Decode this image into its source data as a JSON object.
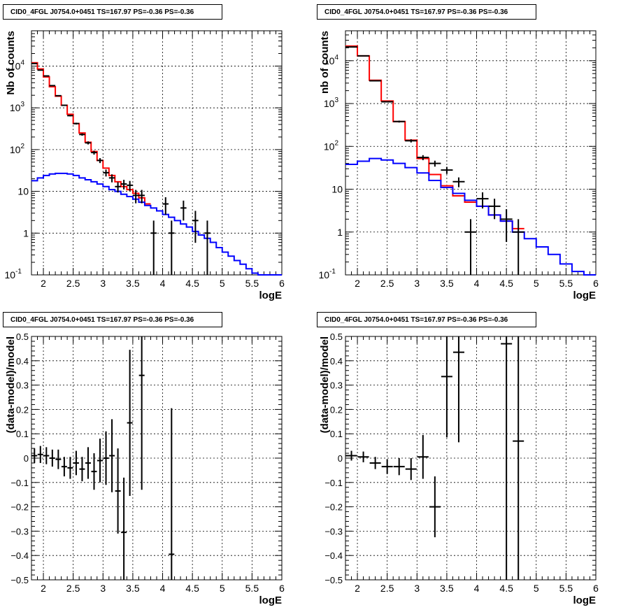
{
  "chart_data": [
    {
      "id": "top-left",
      "type": "step-histogram",
      "title": "CID0_4FGL J0754.0+0451 TS=167.97 PS=-0.36 PS=-0.36",
      "xlabel": "logE",
      "ylabel": "Nb of counts",
      "xlim": [
        1.8,
        6.0
      ],
      "ylim": [
        0.1,
        70000
      ],
      "yscale": "log",
      "grid": true,
      "x_ticks": [
        "2",
        "2.5",
        "3",
        "3.5",
        "4",
        "4.5",
        "5",
        "5.5",
        "6"
      ],
      "y_ticks": [
        "10^-1",
        "1",
        "10",
        "10^2",
        "10^3",
        "10^4"
      ],
      "series": [
        {
          "color": "#ff0000",
          "bin_width": 0.1,
          "bin_edges_start": 1.8,
          "values": [
            12000,
            8500,
            5500,
            3200,
            1900,
            1150,
            700,
            420,
            250,
            150,
            90,
            55,
            36,
            24,
            17,
            13,
            11,
            9,
            7,
            5
          ]
        },
        {
          "color": "#0000ff",
          "bin_width": 0.1,
          "bin_edges_start": 1.8,
          "values": [
            18,
            21,
            24,
            26,
            27,
            27,
            26,
            24,
            21,
            19,
            17,
            15,
            13,
            11,
            10,
            8.5,
            7.5,
            6.5,
            5.5,
            4.6,
            4.0,
            3.4,
            2.8,
            2.4,
            2.0,
            1.65,
            1.4,
            1.1,
            0.9,
            0.75,
            0.6,
            0.45,
            0.35,
            0.28,
            0.22,
            0.18,
            0.14,
            0.11,
            0.1,
            0.1,
            0.1,
            0.1
          ]
        }
      ],
      "data_points": [
        {
          "x": 1.85,
          "y": 11500
        },
        {
          "x": 1.95,
          "y": 8000
        },
        {
          "x": 2.05,
          "y": 5800
        },
        {
          "x": 2.15,
          "y": 3400
        },
        {
          "x": 2.25,
          "y": 1950
        },
        {
          "x": 2.35,
          "y": 1150
        },
        {
          "x": 2.45,
          "y": 650
        },
        {
          "x": 2.55,
          "y": 420
        },
        {
          "x": 2.65,
          "y": 230
        },
        {
          "x": 2.75,
          "y": 145
        },
        {
          "x": 2.85,
          "y": 85
        },
        {
          "x": 2.95,
          "y": 55
        },
        {
          "x": 3.05,
          "y": 28
        },
        {
          "x": 3.15,
          "y": 21
        },
        {
          "x": 3.25,
          "y": 13
        },
        {
          "x": 3.35,
          "y": 15
        },
        {
          "x": 3.45,
          "y": 14
        },
        {
          "x": 3.55,
          "y": 8
        },
        {
          "x": 3.65,
          "y": 8
        },
        {
          "x": 3.85,
          "y": 1
        },
        {
          "x": 4.05,
          "y": 5
        },
        {
          "x": 4.15,
          "y": 1
        },
        {
          "x": 4.35,
          "y": 4
        },
        {
          "x": 4.55,
          "y": 2
        },
        {
          "x": 4.75,
          "y": 1
        }
      ]
    },
    {
      "id": "top-right",
      "type": "step-histogram",
      "title": "CID0_4FGL J0754.0+0451 TS=167.97 PS=-0.36 PS=-0.36",
      "xlabel": "logE",
      "ylabel": "nb of counts",
      "xlim": [
        1.8,
        6.0
      ],
      "ylim": [
        0.1,
        50000
      ],
      "yscale": "log",
      "grid": true,
      "x_ticks": [
        "2",
        "2.5",
        "3",
        "3.5",
        "4",
        "4.5",
        "5",
        "5.5",
        "6"
      ],
      "y_ticks": [
        "10^-1",
        "1",
        "10",
        "10^2",
        "10^3",
        "10^4"
      ],
      "series": [
        {
          "color": "#ff0000",
          "bin_width": 0.2,
          "bin_edges_start": 1.8,
          "values": [
            22000,
            13000,
            3500,
            1150,
            380,
            140,
            52,
            22,
            12,
            7,
            5,
            4,
            2.5,
            1.8,
            1.2
          ]
        },
        {
          "color": "#0000ff",
          "bin_width": 0.2,
          "bin_edges_start": 1.8,
          "values": [
            38,
            45,
            52,
            48,
            40,
            32,
            24,
            16,
            11,
            8,
            5.5,
            4,
            2.5,
            1.8,
            1.0,
            0.7,
            0.45,
            0.3,
            0.18,
            0.12,
            0.1
          ]
        }
      ],
      "data_points": [
        {
          "x": 1.9,
          "y": 21000
        },
        {
          "x": 2.1,
          "y": 13000
        },
        {
          "x": 2.3,
          "y": 3400
        },
        {
          "x": 2.5,
          "y": 1100
        },
        {
          "x": 2.7,
          "y": 380
        },
        {
          "x": 2.9,
          "y": 135
        },
        {
          "x": 3.1,
          "y": 55
        },
        {
          "x": 3.3,
          "y": 40
        },
        {
          "x": 3.5,
          "y": 28
        },
        {
          "x": 3.7,
          "y": 15
        },
        {
          "x": 3.9,
          "y": 1
        },
        {
          "x": 4.1,
          "y": 6
        },
        {
          "x": 4.3,
          "y": 4
        },
        {
          "x": 4.5,
          "y": 2
        },
        {
          "x": 4.7,
          "y": 1
        }
      ]
    },
    {
      "id": "bottom-left",
      "type": "scatter",
      "title": "CID0_4FGL J0754.0+0451 TS=167.97 PS=-0.36 PS=-0.36",
      "xlabel": "logE",
      "ylabel": "(data-model)/model",
      "xlim": [
        1.8,
        6.0
      ],
      "ylim": [
        -0.5,
        0.5
      ],
      "grid": true,
      "x_ticks": [
        "2",
        "2.5",
        "3",
        "3.5",
        "4",
        "4.5",
        "5",
        "5.5",
        "6"
      ],
      "y_ticks": [
        "-0.5",
        "-0.4",
        "-0.3",
        "-0.2",
        "-0.1",
        "0",
        "0.1",
        "0.2",
        "0.3",
        "0.4",
        "0.5"
      ],
      "points": [
        {
          "x": 1.85,
          "y": 0.01,
          "yerr": 0.03
        },
        {
          "x": 1.95,
          "y": 0.015,
          "yerr": 0.035
        },
        {
          "x": 2.05,
          "y": 0.01,
          "yerr": 0.035
        },
        {
          "x": 2.15,
          "y": 0.0,
          "yerr": 0.035
        },
        {
          "x": 2.25,
          "y": -0.005,
          "yerr": 0.04
        },
        {
          "x": 2.35,
          "y": -0.035,
          "yerr": 0.04
        },
        {
          "x": 2.45,
          "y": -0.04,
          "yerr": 0.045
        },
        {
          "x": 2.55,
          "y": -0.02,
          "yerr": 0.05
        },
        {
          "x": 2.65,
          "y": -0.045,
          "yerr": 0.05
        },
        {
          "x": 2.75,
          "y": -0.02,
          "yerr": 0.065
        },
        {
          "x": 2.85,
          "y": -0.055,
          "yerr": 0.075
        },
        {
          "x": 2.95,
          "y": -0.01,
          "yerr": 0.09
        },
        {
          "x": 3.05,
          "y": 0.0,
          "yerr": 0.11
        },
        {
          "x": 3.15,
          "y": 0.01,
          "yerr": 0.15
        },
        {
          "x": 3.25,
          "y": -0.135,
          "yerr": 0.175
        },
        {
          "x": 3.35,
          "y": -0.305,
          "yerr": 0.225
        },
        {
          "x": 3.45,
          "y": 0.145,
          "yerr": 0.3
        },
        {
          "x": 3.65,
          "y": 0.34,
          "yerr": 0.47
        },
        {
          "x": 4.15,
          "y": -0.395,
          "yerr": 0.6
        }
      ]
    },
    {
      "id": "bottom-right",
      "type": "scatter",
      "title": "CID0_4FGL J0754.0+0451 TS=167.97 PS=-0.36 PS=-0.36",
      "xlabel": "logE",
      "ylabel": "(data-model)/model",
      "xlim": [
        1.8,
        6.0
      ],
      "ylim": [
        -0.5,
        0.5
      ],
      "grid": true,
      "x_ticks": [
        "2",
        "2.5",
        "3",
        "3.5",
        "4",
        "4.5",
        "5",
        "5.5",
        "6"
      ],
      "y_ticks": [
        "-0.5",
        "-0.4",
        "-0.3",
        "-0.2",
        "-0.1",
        "0",
        "0.1",
        "0.2",
        "0.3",
        "0.4",
        "0.5"
      ],
      "points": [
        {
          "x": 1.9,
          "y": 0.01,
          "yerr": 0.02
        },
        {
          "x": 2.1,
          "y": 0.005,
          "yerr": 0.022
        },
        {
          "x": 2.3,
          "y": -0.02,
          "yerr": 0.025
        },
        {
          "x": 2.5,
          "y": -0.035,
          "yerr": 0.03
        },
        {
          "x": 2.7,
          "y": -0.035,
          "yerr": 0.035
        },
        {
          "x": 2.9,
          "y": -0.045,
          "yerr": 0.045
        },
        {
          "x": 3.1,
          "y": 0.005,
          "yerr": 0.09
        },
        {
          "x": 3.3,
          "y": -0.2,
          "yerr": 0.125
        },
        {
          "x": 3.5,
          "y": 0.335,
          "yerr": 0.25
        },
        {
          "x": 3.7,
          "y": 0.435,
          "yerr": 0.37
        },
        {
          "x": 4.5,
          "y": 0.47,
          "yerr": 1.0
        },
        {
          "x": 4.7,
          "y": 0.07,
          "yerr": 0.9
        }
      ]
    }
  ]
}
